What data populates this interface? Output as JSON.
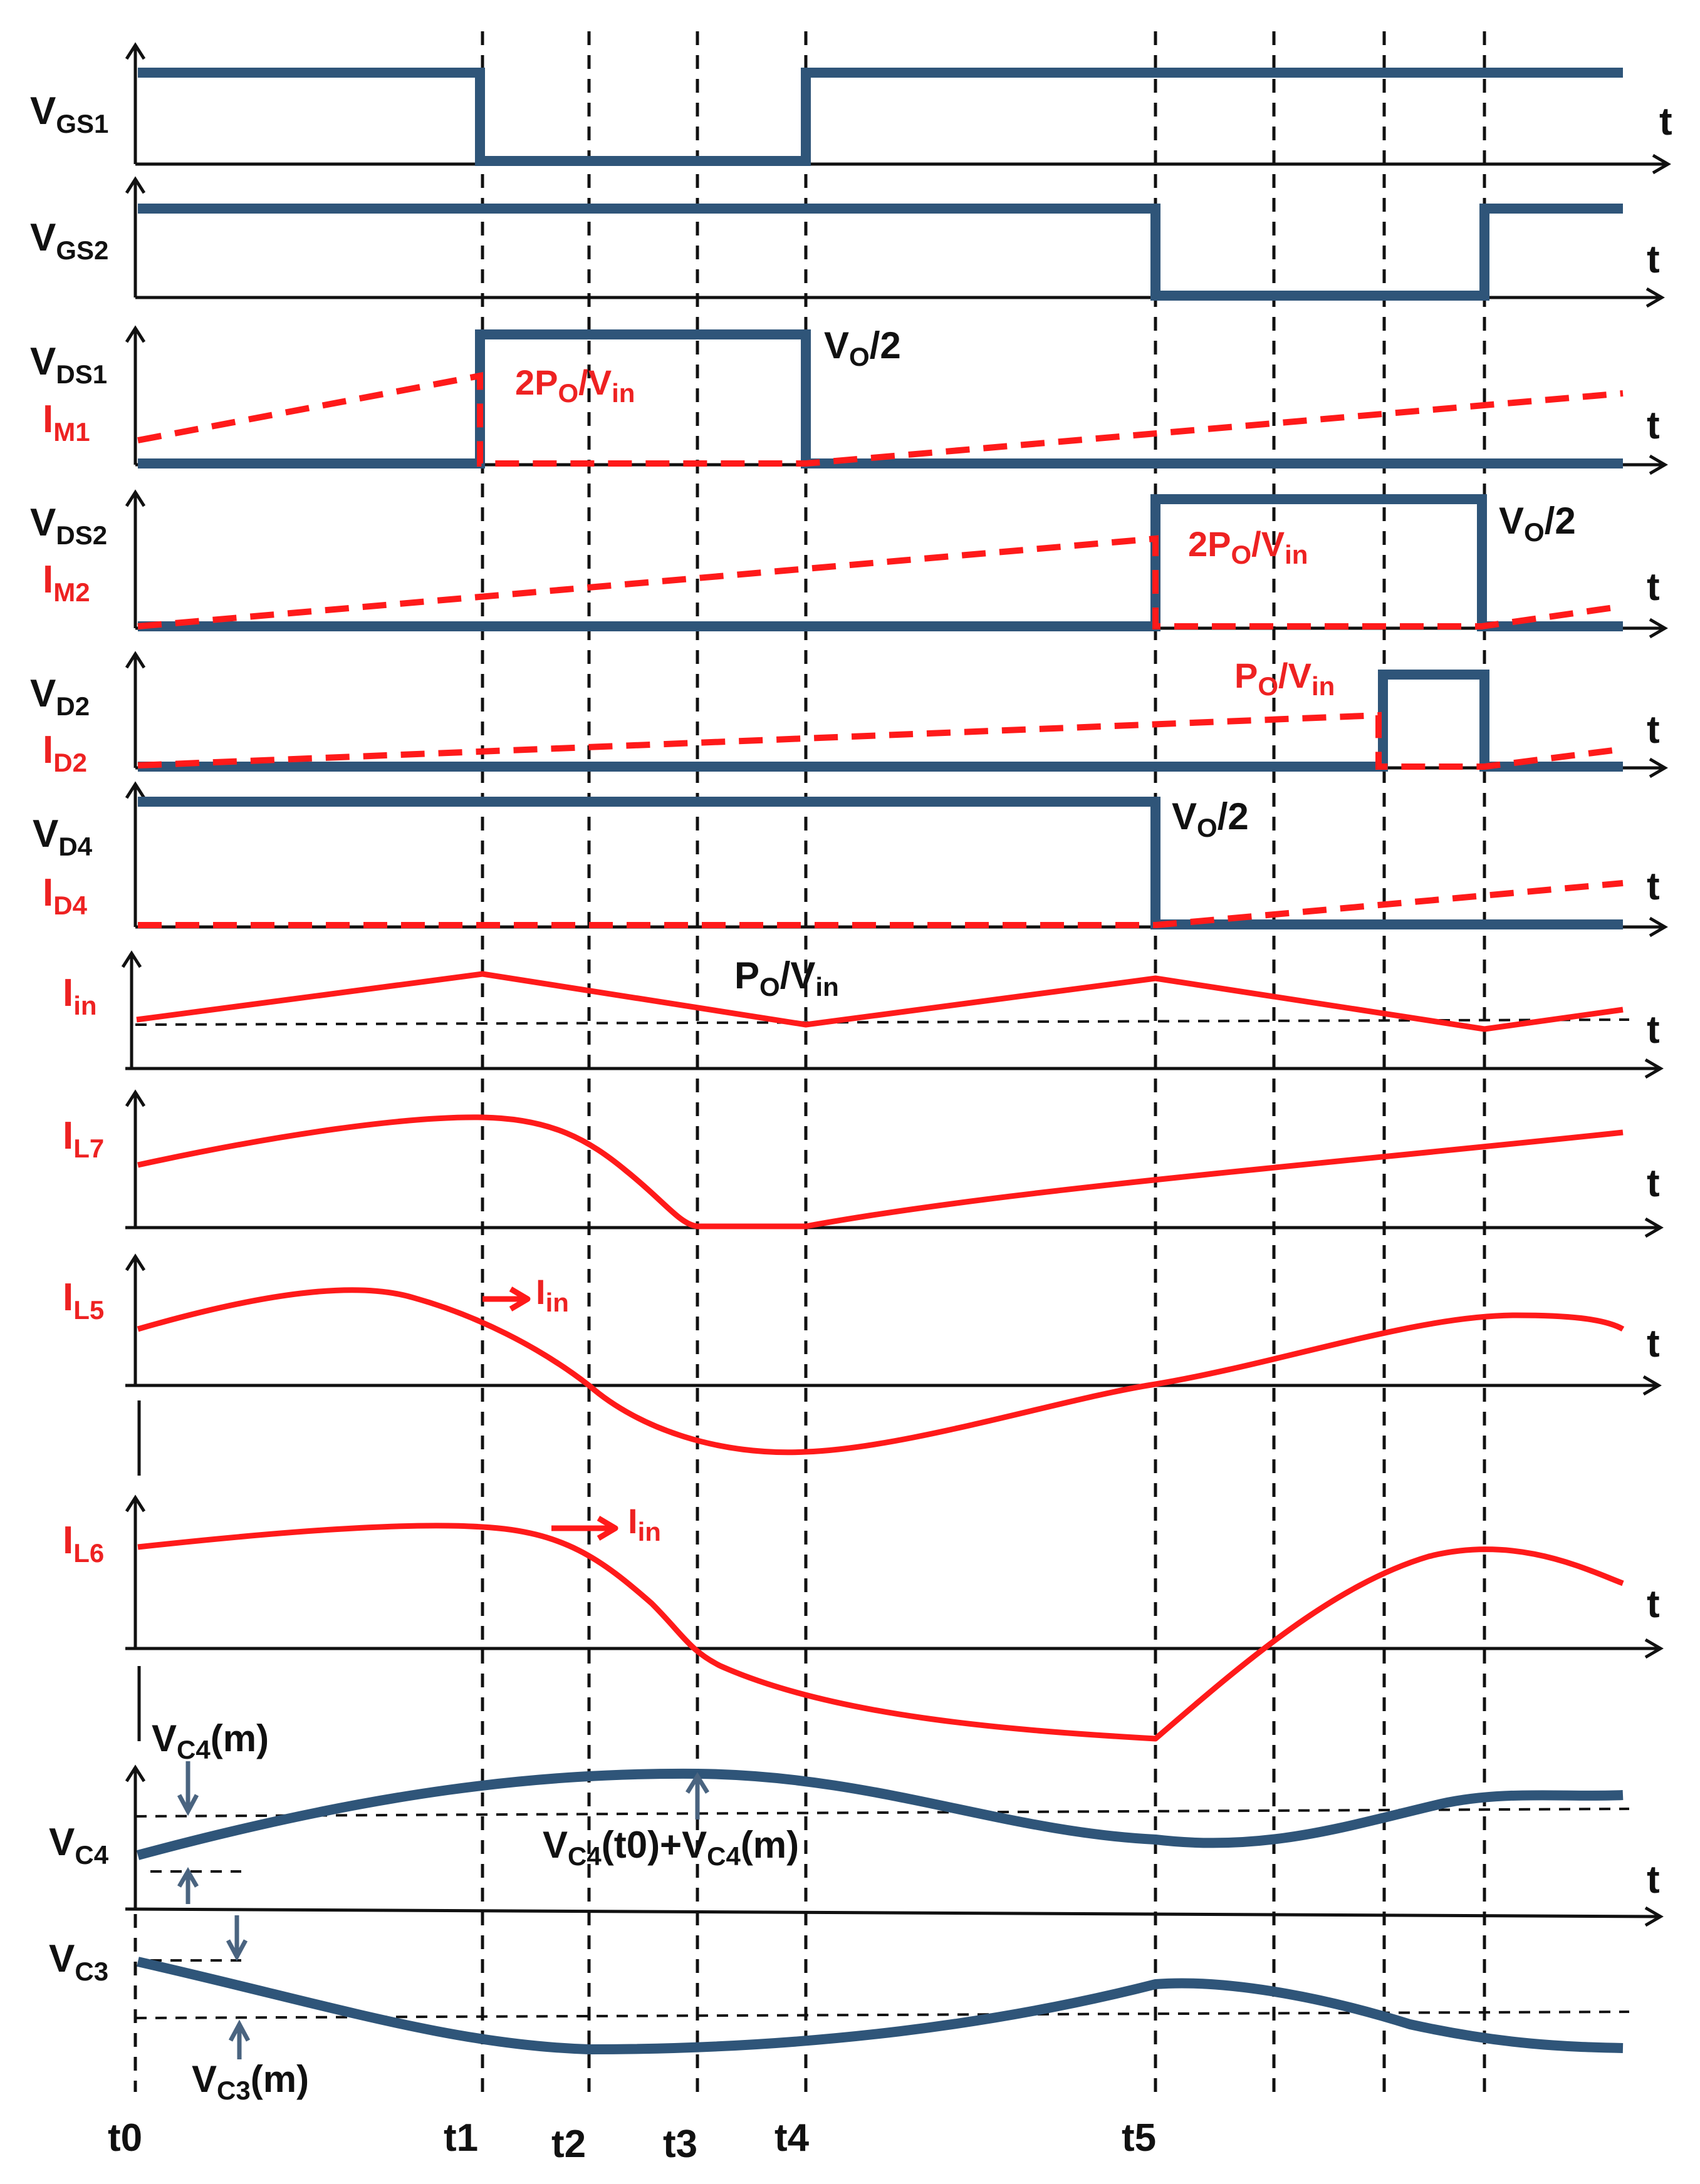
{
  "colors": {
    "blue": "#2f5579",
    "red": "#ff1a1a",
    "black": "#111111"
  },
  "axis_symbol": "t",
  "signals": {
    "vgs1": {
      "main": "V",
      "sub": "GS1"
    },
    "vgs2": {
      "main": "V",
      "sub": "GS2"
    },
    "vds1": {
      "main": "V",
      "sub": "DS1"
    },
    "im1": {
      "main": "I",
      "sub": "M1"
    },
    "vds2": {
      "main": "V",
      "sub": "DS2"
    },
    "im2": {
      "main": "I",
      "sub": "M2"
    },
    "vd2": {
      "main": "V",
      "sub": "D2"
    },
    "id2": {
      "main": "I",
      "sub": "D2"
    },
    "vd4": {
      "main": "V",
      "sub": "D4"
    },
    "id4": {
      "main": "I",
      "sub": "D4"
    },
    "iin": {
      "main": "I",
      "sub": "in"
    },
    "il7": {
      "main": "I",
      "sub": "L7"
    },
    "il5": {
      "main": "I",
      "sub": "L5"
    },
    "il6": {
      "main": "I",
      "sub": "L6"
    },
    "vc4": {
      "main": "V",
      "sub": "C4"
    },
    "vc3": {
      "main": "V",
      "sub": "C3"
    }
  },
  "annotations": {
    "vo2_a": {
      "main": "V",
      "sub": "O",
      "rest": "/2"
    },
    "vo2_b": {
      "main": "V",
      "sub": "O",
      "rest": "/2"
    },
    "vo2_c": {
      "main": "V",
      "sub": "O",
      "rest": "/2"
    },
    "two_po_vin_a": {
      "p1": "2P",
      "s1": "O",
      "p2": "/V",
      "s2": "in"
    },
    "two_po_vin_b": {
      "p1": "2P",
      "s1": "O",
      "p2": "/V",
      "s2": "in"
    },
    "po_vin_red": {
      "p1": "P",
      "s1": "O",
      "p2": "/V",
      "s2": "in"
    },
    "po_vin_blk": {
      "p1": "P",
      "s1": "O",
      "p2": "/V",
      "s2": "in"
    },
    "iin_arrow_l5": {
      "main": "I",
      "sub": "in"
    },
    "iin_arrow_l6": {
      "main": "I",
      "sub": "in"
    },
    "vc4m": {
      "main": "V",
      "sub": "C4",
      "rest": "(m)"
    },
    "vc4_sum": {
      "m1": "V",
      "s1": "C4",
      "r1": "(t0)+V",
      "s2": "C4",
      "r2": "(m)"
    },
    "vc3m": {
      "main": "V",
      "sub": "C3",
      "rest": "(m)"
    }
  },
  "time_labels": [
    "t0",
    "t1",
    "t2",
    "t3",
    "t4",
    "t5"
  ]
}
